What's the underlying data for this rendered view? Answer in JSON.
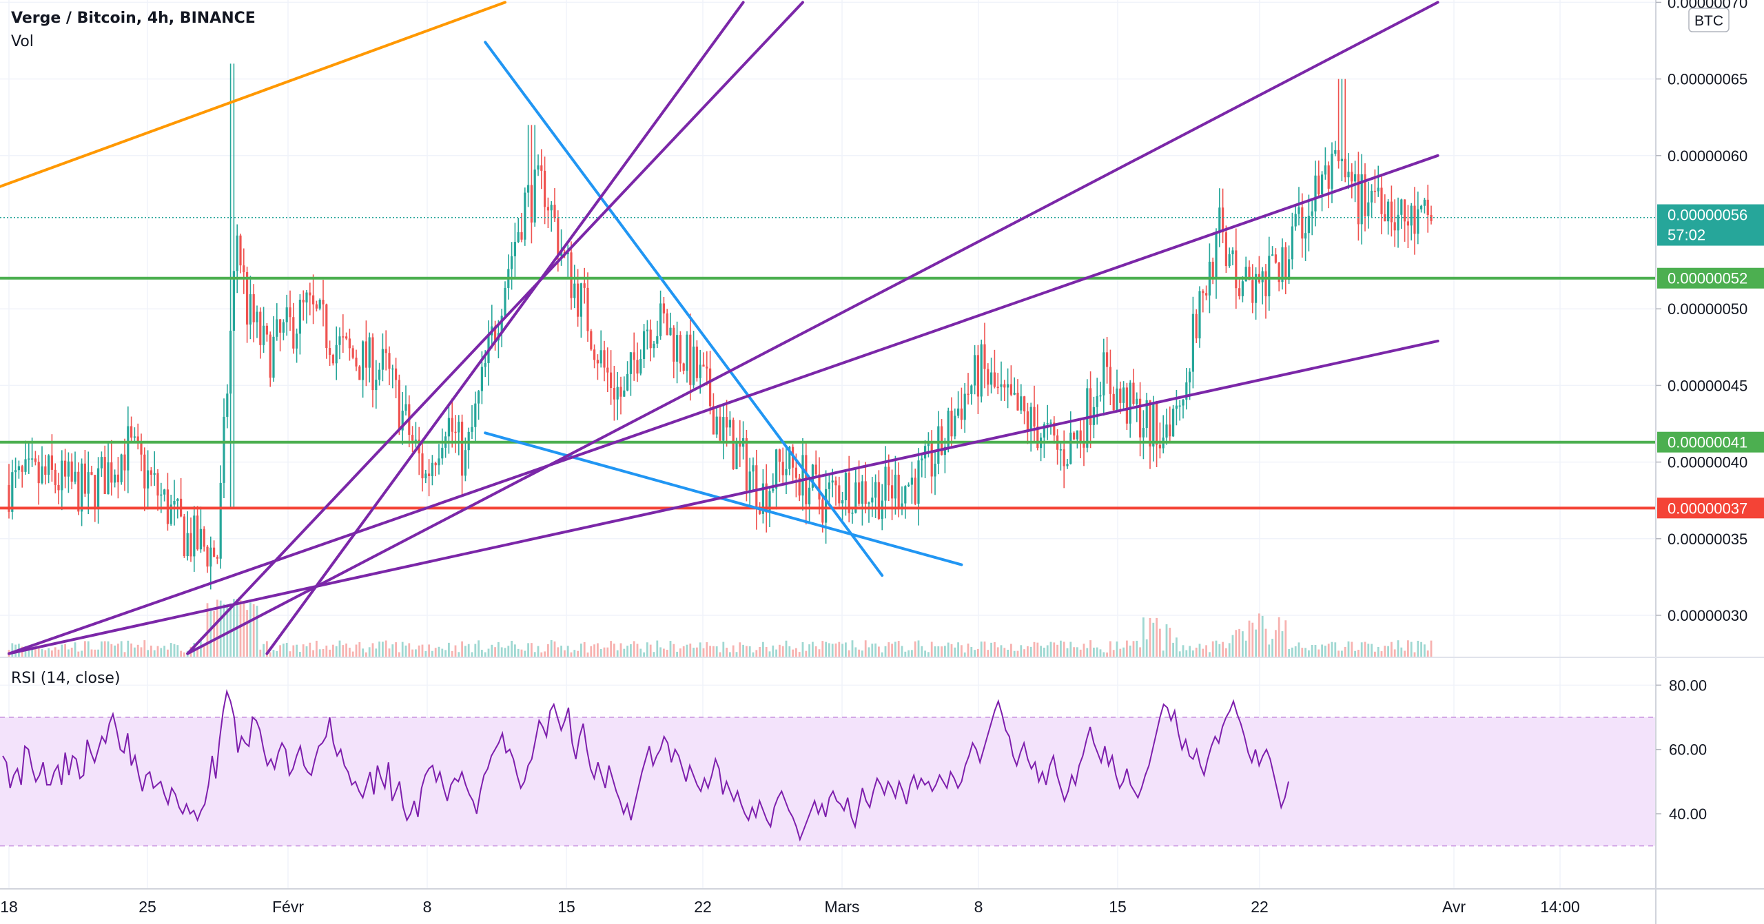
{
  "header": {
    "symbol_line": "Verge / Bitcoin, 4h, BINANCE",
    "volume_label": "Vol",
    "currency_badge": "BTC"
  },
  "rsi": {
    "title": "RSI (14, close)",
    "ticks": [
      "80.00",
      "60.00",
      "40.00"
    ],
    "tick_values": [
      80,
      60,
      40
    ],
    "band": [
      30,
      70
    ],
    "range": [
      25,
      82
    ],
    "values": [
      58,
      56,
      48,
      52,
      54,
      49,
      61,
      60,
      54,
      50,
      52,
      56,
      49,
      49,
      53,
      55,
      49,
      59,
      52,
      58,
      57,
      51,
      52,
      63,
      59,
      56,
      60,
      64,
      62,
      68,
      71,
      66,
      60,
      59,
      65,
      55,
      58,
      52,
      47,
      52,
      53,
      48,
      49,
      50,
      46,
      43,
      48,
      46,
      42,
      40,
      43,
      40,
      41,
      38,
      41,
      43,
      49,
      58,
      51,
      63,
      72,
      78,
      75,
      70,
      59,
      64,
      62,
      61,
      70,
      69,
      66,
      60,
      55,
      57,
      54,
      59,
      62,
      60,
      52,
      54,
      58,
      61,
      55,
      53,
      52,
      57,
      61,
      62,
      64,
      70,
      62,
      58,
      60,
      55,
      53,
      49,
      50,
      47,
      45,
      49,
      53,
      46,
      55,
      51,
      48,
      56,
      44,
      47,
      50,
      42,
      38,
      40,
      44,
      39,
      48,
      52,
      54,
      55,
      50,
      53,
      48,
      44,
      49,
      51,
      50,
      53,
      49,
      46,
      44,
      40,
      47,
      52,
      54,
      58,
      60,
      62,
      65,
      59,
      60,
      57,
      52,
      48,
      50,
      55,
      57,
      63,
      69,
      67,
      64,
      72,
      74,
      70,
      66,
      69,
      73,
      62,
      57,
      64,
      68,
      60,
      54,
      51,
      56,
      52,
      48,
      55,
      51,
      47,
      44,
      40,
      43,
      38,
      43,
      48,
      53,
      57,
      61,
      55,
      58,
      60,
      64,
      62,
      56,
      60,
      58,
      54,
      50,
      55,
      52,
      49,
      47,
      51,
      48,
      52,
      57,
      54,
      46,
      50,
      47,
      44,
      47,
      43,
      40,
      38,
      42,
      39,
      44,
      41,
      38,
      36,
      42,
      45,
      47,
      44,
      41,
      39,
      36,
      32,
      35,
      38,
      41,
      44,
      40,
      43,
      39,
      45,
      47,
      44,
      43,
      41,
      45,
      39,
      36,
      42,
      48,
      44,
      42,
      47,
      51,
      49,
      46,
      50,
      48,
      45,
      50,
      47,
      43,
      49,
      52,
      48,
      51,
      49,
      50,
      47,
      49,
      52,
      50,
      48,
      53,
      51,
      48,
      50,
      55,
      58,
      62,
      60,
      56,
      60,
      64,
      68,
      72,
      75,
      71,
      66,
      64,
      58,
      55,
      59,
      62,
      57,
      54,
      56,
      50,
      53,
      49,
      55,
      58,
      52,
      48,
      44,
      47,
      52,
      49,
      55,
      58,
      63,
      67,
      62,
      59,
      56,
      61,
      55,
      58,
      52,
      48,
      50,
      54,
      49,
      47,
      45,
      48,
      52,
      55,
      60,
      65,
      70,
      74,
      73,
      69,
      72,
      65,
      60,
      63,
      58,
      57,
      60,
      55,
      52,
      57,
      61,
      64,
      62,
      67,
      70,
      72,
      75,
      71,
      68,
      64,
      59,
      56,
      60,
      55,
      58,
      60,
      57,
      52,
      47,
      42,
      45,
      50
    ]
  },
  "price_axis": {
    "labels": [
      "0.00000070",
      "0.00000065",
      "0.00000060",
      "0.00000050",
      "0.00000045",
      "0.00000040",
      "0.00000035",
      "0.00000030"
    ],
    "values": [
      7e-07,
      6.5e-07,
      6e-07,
      5e-07,
      4.5e-07,
      4e-07,
      3.5e-07,
      3e-07
    ]
  },
  "price_tags": [
    {
      "label": "0.00000056",
      "sub": "57:02",
      "value": 5.61e-07,
      "color": "#26a69a"
    },
    {
      "label": "0.00000052",
      "value": 5.2e-07,
      "color": "#4caf50"
    },
    {
      "label": "0.00000041",
      "value": 4.13e-07,
      "color": "#4caf50"
    },
    {
      "label": "0.00000037",
      "value": 3.7e-07,
      "color": "#f44336"
    }
  ],
  "time_axis": {
    "labels": [
      "18",
      "25",
      "Févr",
      "8",
      "15",
      "22",
      "Mars",
      "8",
      "15",
      "22",
      "Avr",
      "14:00"
    ]
  },
  "colors": {
    "up": "#26a69a",
    "down": "#ef5350",
    "rsi_line": "#7e1fad",
    "rsi_band": "#f3e3fb",
    "trend_purple": "#7b27a8",
    "trend_blue": "#2196f3",
    "trend_orange": "#ff9800",
    "hline_green": "#4caf50",
    "hline_red": "#f44336",
    "grid": "#f0f3fa"
  },
  "chart_data": {
    "type": "candlestick",
    "title": "Verge / Bitcoin, 4h, BINANCE",
    "symbol": "XVG/BTC",
    "timeframe": "4h",
    "exchange": "BINANCE",
    "y_range": [
      2.75e-07,
      7e-07
    ],
    "current_price": 5.6e-07,
    "candles_summary": {
      "segments": [
        {
          "period": "18 Jan - 28 Jan",
          "range": [
            3.2e-07,
            4.2e-07
          ]
        },
        {
          "period": "29 Jan spike",
          "high": 6.6e-07,
          "low": 3.7e-07
        },
        {
          "period": "30 Jan - 10 Feb",
          "range": [
            3.8e-07,
            5.3e-07
          ]
        },
        {
          "period": "11 Feb - 14 Feb",
          "high": 6.2e-07
        },
        {
          "period": "15 Feb - 28 Feb",
          "range": [
            3.5e-07,
            5.3e-07
          ]
        },
        {
          "period": "1 Mar - 4 Mar",
          "range": [
            3.6e-07,
            4e-07
          ]
        },
        {
          "period": "5 Mar - 14 Mar",
          "range": [
            3.9e-07,
            4.8e-07
          ]
        },
        {
          "period": "15 Mar - 20 Mar",
          "high": 6.5e-07,
          "low": 5e-07
        },
        {
          "period": "21 Mar - 23 Mar",
          "close": 5.6e-07
        }
      ]
    },
    "horizontal_lines": [
      {
        "value": 5.2e-07,
        "color": "#4caf50"
      },
      {
        "value": 4.13e-07,
        "color": "#4caf50"
      },
      {
        "value": 3.7e-07,
        "color": "#f44336"
      }
    ],
    "trend_lines": [
      {
        "color": "#ff9800",
        "from": [
          "2021-01-14",
          5.63e-07
        ],
        "to": [
          "2021-02-12",
          7e-07
        ]
      },
      {
        "color": "#2196f3",
        "from": [
          "2021-02-11",
          6.74e-07
        ],
        "to": [
          "2021-03-03",
          3.26e-07
        ]
      },
      {
        "color": "#2196f3",
        "from": [
          "2021-02-11",
          4.19e-07
        ],
        "to": [
          "2021-03-07",
          3.33e-07
        ]
      },
      {
        "color": "#7b27a8",
        "from": [
          "2021-01-18",
          2.75e-07
        ],
        "to": [
          "2021-03-31",
          4.79e-07
        ]
      },
      {
        "color": "#7b27a8",
        "from": [
          "2021-01-18",
          2.75e-07
        ],
        "to": [
          "2021-03-31",
          6e-07
        ]
      },
      {
        "color": "#7b27a8",
        "from": [
          "2021-01-27",
          2.75e-07
        ],
        "to": [
          "2021-03-31",
          7e-07
        ]
      },
      {
        "color": "#7b27a8",
        "from": [
          "2021-01-27",
          2.75e-07
        ],
        "to": [
          "2021-02-27",
          7e-07
        ]
      },
      {
        "color": "#7b27a8",
        "from": [
          "2021-01-31",
          2.75e-07
        ],
        "to": [
          "2021-02-24",
          7e-07
        ]
      }
    ],
    "rsi_series": "rsi.values"
  }
}
